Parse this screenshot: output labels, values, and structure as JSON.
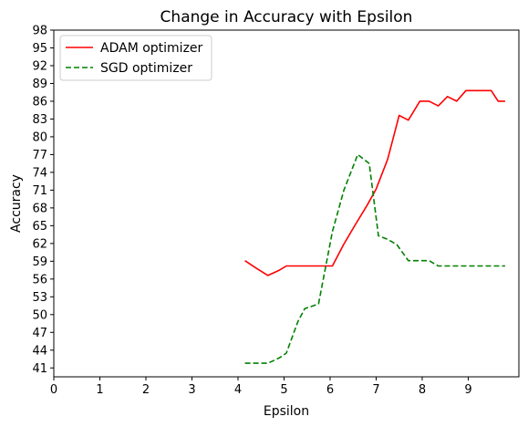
{
  "chart_data": {
    "type": "line",
    "title": "Change in Accuracy with Epsilon",
    "xlabel": "Epsilon",
    "ylabel": "Accuracy",
    "xlim": [
      0,
      10.1
    ],
    "ylim": [
      39.5,
      98
    ],
    "x_ticks": [
      0,
      1,
      2,
      3,
      4,
      5,
      6,
      7,
      8,
      9
    ],
    "y_ticks": [
      41,
      44,
      47,
      50,
      53,
      56,
      59,
      62,
      65,
      68,
      71,
      74,
      77,
      80,
      83,
      86,
      89,
      92,
      95,
      98
    ],
    "grid": false,
    "legend": "top-left",
    "series": [
      {
        "name": "ADAM optimizer",
        "color": "#ff0000",
        "dash": "solid",
        "points": [
          [
            4.15,
            59.1
          ],
          [
            4.4,
            57.8
          ],
          [
            4.65,
            56.6
          ],
          [
            4.9,
            57.5
          ],
          [
            5.05,
            58.2
          ],
          [
            5.3,
            58.2
          ],
          [
            5.6,
            58.2
          ],
          [
            5.8,
            58.2
          ],
          [
            6.05,
            58.2
          ],
          [
            6.3,
            61.9
          ],
          [
            6.55,
            65.2
          ],
          [
            6.8,
            68.4
          ],
          [
            7.0,
            71.2
          ],
          [
            7.25,
            76.2
          ],
          [
            7.5,
            83.6
          ],
          [
            7.7,
            82.8
          ],
          [
            7.95,
            86.0
          ],
          [
            8.15,
            86.0
          ],
          [
            8.35,
            85.2
          ],
          [
            8.55,
            86.8
          ],
          [
            8.75,
            86.0
          ],
          [
            8.95,
            87.8
          ],
          [
            9.15,
            87.8
          ],
          [
            9.3,
            87.8
          ],
          [
            9.5,
            87.8
          ],
          [
            9.65,
            86.0
          ],
          [
            9.8,
            86.0
          ]
        ]
      },
      {
        "name": "SGD optimizer",
        "color": "#008000",
        "dash": "dashed",
        "points": [
          [
            4.15,
            41.8
          ],
          [
            4.4,
            41.8
          ],
          [
            4.65,
            41.8
          ],
          [
            4.9,
            42.7
          ],
          [
            5.05,
            43.5
          ],
          [
            5.3,
            48.8
          ],
          [
            5.45,
            51.0
          ],
          [
            5.75,
            51.8
          ],
          [
            6.05,
            64.0
          ],
          [
            6.3,
            71.0
          ],
          [
            6.6,
            77.0
          ],
          [
            6.85,
            75.5
          ],
          [
            7.05,
            63.3
          ],
          [
            7.25,
            62.7
          ],
          [
            7.45,
            61.8
          ],
          [
            7.7,
            59.1
          ],
          [
            7.95,
            59.1
          ],
          [
            8.15,
            59.1
          ],
          [
            8.35,
            58.2
          ],
          [
            8.55,
            58.2
          ],
          [
            8.75,
            58.2
          ],
          [
            8.95,
            58.2
          ],
          [
            9.15,
            58.2
          ],
          [
            9.3,
            58.2
          ],
          [
            9.5,
            58.2
          ],
          [
            9.65,
            58.2
          ],
          [
            9.8,
            58.2
          ]
        ]
      }
    ]
  }
}
